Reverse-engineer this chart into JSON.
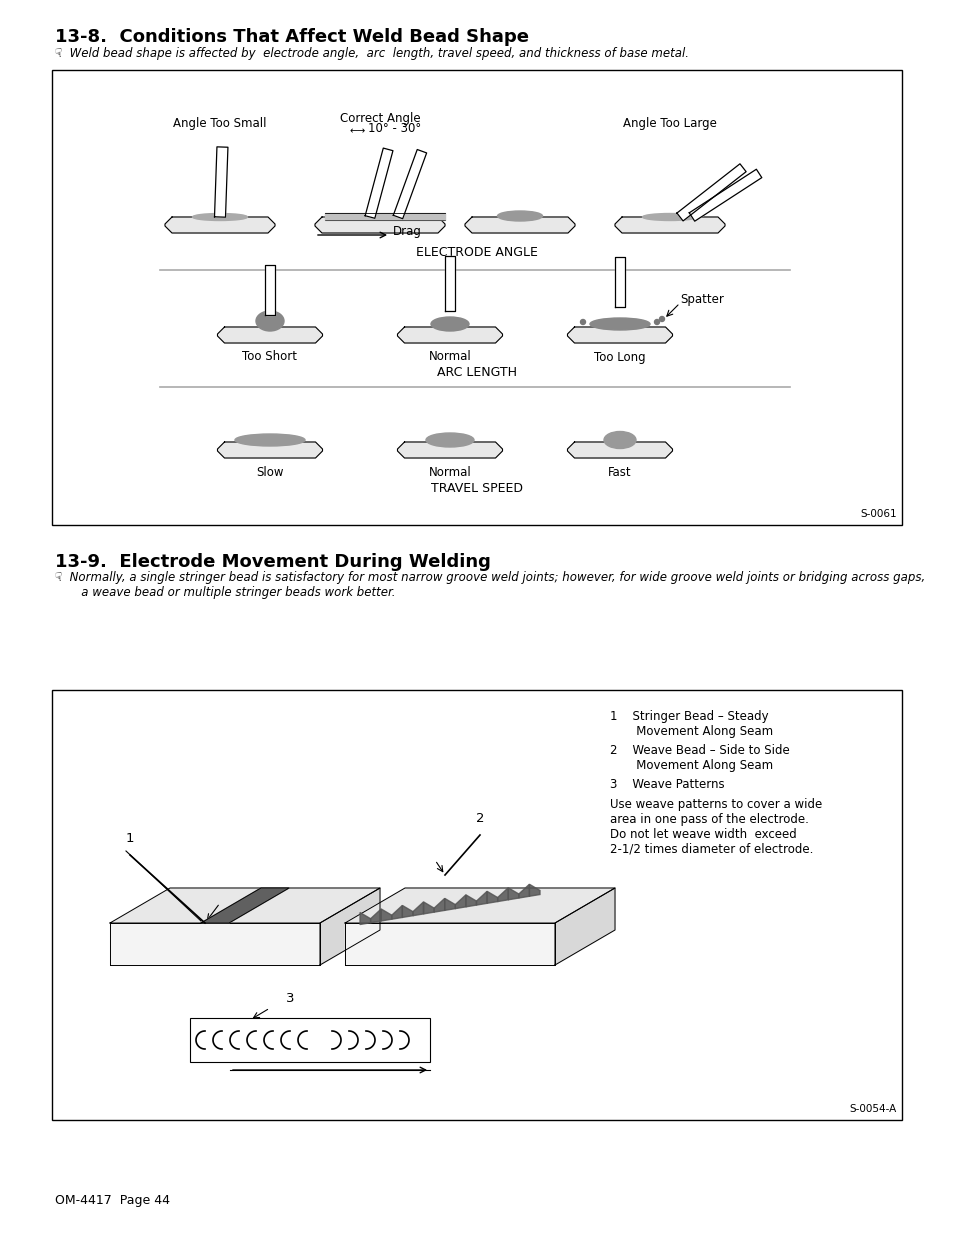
{
  "title1": "13-8.  Conditions That Affect Weld Bead Shape",
  "title2": "13-9.  Electrode Movement During Welding",
  "subtitle1": "☟  Weld bead shape is affected by  electrode angle,  arc  length, travel speed, and thickness of base metal.",
  "subtitle2": "☟  Normally, a single stringer bead is satisfactory for most narrow groove weld joints; however, for wide groove weld joints or bridging across gaps,\n       a weave bead or multiple stringer beads work better.",
  "section1_label": "ELECTRODE ANGLE",
  "section2_label": "ARC LENGTH",
  "section3_label": "TRAVEL SPEED",
  "angle_labels": [
    "Angle Too Small",
    "Correct Angle",
    "Angle Too Large"
  ],
  "arc_labels": [
    "Too Short",
    "Normal",
    "Too Long"
  ],
  "travel_labels": [
    "Slow",
    "Normal",
    "Fast"
  ],
  "correct_angle_text": "10° - 30°",
  "drag_label": "Drag",
  "spatter_label": "Spatter",
  "code1": "S-0061",
  "code2": "S-0054-A",
  "legend_text": "Use weave patterns to cover a wide\narea in one pass of the electrode.\nDo not let weave width  exceed\n2-1/2 times diameter of electrode.",
  "footer": "OM-4417  Page 44",
  "bg_color": "#ffffff"
}
